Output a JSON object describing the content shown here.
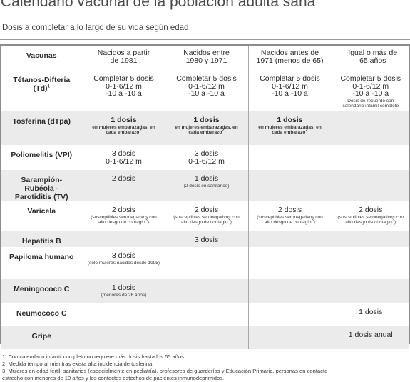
{
  "title": "Calendario vacunal de la población adulta sana",
  "subtitle": "Dosis a completar a lo largo de su vida según edad",
  "headers": [
    "Vacunas",
    "Nacidos a partir de 1981",
    "Nacidos entre 1980 y 1971",
    "Nacidos antes de 1971 (menos de 65)",
    "Igual o más de 65 años"
  ],
  "rows": [
    {
      "name": "Tétanos-Difteria (Td)",
      "name_sup": "1",
      "cells": [
        {
          "main": "Completar 5 dosis\n0-1-6/12 m\n-10 a -10 a"
        },
        {
          "main": "Completar 5 dosis\n0-1-6/12 m\n-10 a -10 a"
        },
        {
          "main": "Completar 5 dosis\n0-1-6/12 m\n-10 a -10 a"
        },
        {
          "main": "Completar 5 dosis\n0-1-6/12 m\n-10 a -10 a",
          "note": "Dosis de recuerdo con calendario infantil completo"
        }
      ]
    },
    {
      "name": "Tosferina (dTpa)",
      "cells": [
        {
          "main": "1 dosis",
          "note": "en mujeres embarazadas, en cada embarazo",
          "note_sup": "2",
          "bold": true
        },
        {
          "main": "1 dosis",
          "note": "en mujeres embarazadas, en cada embarazo",
          "note_sup": "2",
          "bold": true
        },
        {
          "main": "1 dosis",
          "note": "en mujeres embarazadas, en cada embarazo",
          "note_sup": "2",
          "bold": true
        },
        {}
      ]
    },
    {
      "name": "Poliomelitis (VPI)",
      "cells": [
        {
          "main": "3 dosis\n0-1-6/12 m"
        },
        {
          "main": "3 dosis\n0-1-6/12 m"
        },
        {},
        {}
      ]
    },
    {
      "name": "Sarampión-Rubéola -Parotiditis (TV)",
      "cells": [
        {
          "main": "2 dosis"
        },
        {
          "main": "1 dosis",
          "note": "(2 dosis en sanitarios)"
        },
        {},
        {}
      ]
    },
    {
      "name": "Varicela",
      "cells": [
        {
          "main": "2 dosis",
          "note": "(susceptibles seronegativos con alto riesgo de contagio",
          "note_sup": "3",
          "note_end": ")"
        },
        {
          "main": "2 dosis",
          "note": "(susceptibles seronegativos con alto riesgo de contagio",
          "note_sup": "3",
          "note_end": ")"
        },
        {
          "main": "2 dosis",
          "note": "(susceptibles seronegativos con alto riesgo de contagio",
          "note_sup": "3",
          "note_end": ")"
        },
        {
          "main": "2 dosis",
          "note": "(susceptibles seronegativos con alto riesgo de contagio",
          "note_sup": "3",
          "note_end": ")"
        }
      ]
    },
    {
      "name": "Hepatitis B",
      "cells": [
        {},
        {
          "main": "3 dosis"
        },
        {},
        {}
      ]
    },
    {
      "name": "Papiloma humano",
      "cells": [
        {
          "main": "3 dosis",
          "note": "(sólo mujeres nacidas desde 1995)"
        },
        {},
        {},
        {}
      ]
    },
    {
      "name": "Meningococo C",
      "cells": [
        {
          "main": "1 dosis",
          "note": "(menores de 26 años)"
        },
        {},
        {},
        {}
      ]
    },
    {
      "name": "Neumococo C",
      "cells": [
        {},
        {},
        {},
        {
          "main": "1 dosis"
        }
      ]
    },
    {
      "name": "Gripe",
      "cells": [
        {},
        {},
        {},
        {
          "main": "1 dosis anual"
        }
      ]
    }
  ],
  "footnotes": [
    "1. Con calendario infantil completo no requiere más dosis hasta los 65 años.",
    "2. Medida temporal mientras exista alta incidencia de tosferina.",
    "3. Mujeres en edad fértil, sanitarios (especialmente en pediatría), profesores de guarderías y Educación Primaria, personas en contacto",
    "estrecho con menores de 10 años y los contactos estechos de pacientes inmunodeprimidos."
  ]
}
